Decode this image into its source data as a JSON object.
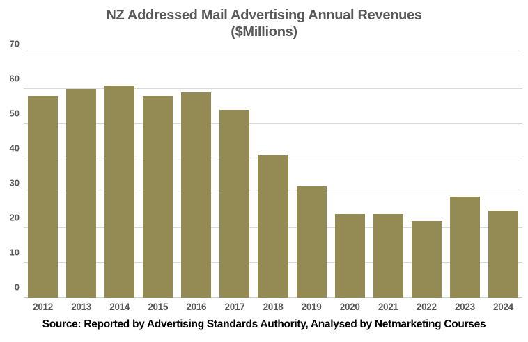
{
  "chart_data": {
    "type": "bar",
    "title": "NZ Addressed Mail Advertising Annual Revenues",
    "subtitle": "($Millions)",
    "categories": [
      "2012",
      "2013",
      "2014",
      "2015",
      "2016",
      "2017",
      "2018",
      "2019",
      "2020",
      "2021",
      "2022",
      "2023",
      "2024"
    ],
    "values": [
      58,
      60,
      61,
      58,
      59,
      54,
      41,
      32,
      24,
      24,
      22,
      29,
      25
    ],
    "xlabel": "",
    "ylabel": "",
    "ylim": [
      0,
      70
    ],
    "yticks": [
      0,
      10,
      20,
      30,
      40,
      50,
      60,
      70
    ],
    "grid": "horizontal",
    "legend": "none",
    "source_note": "Source: Reported by Advertising Standards Authority, Analysed by Netmarketing Courses"
  },
  "colors": {
    "bar": "#948A54",
    "title_text": "#595959",
    "axis_label_text": "#595959",
    "gridline": "#D9D9D9",
    "axis_line": "#D0CECE",
    "source_text": "#000000",
    "background": "#FFFFFF"
  }
}
